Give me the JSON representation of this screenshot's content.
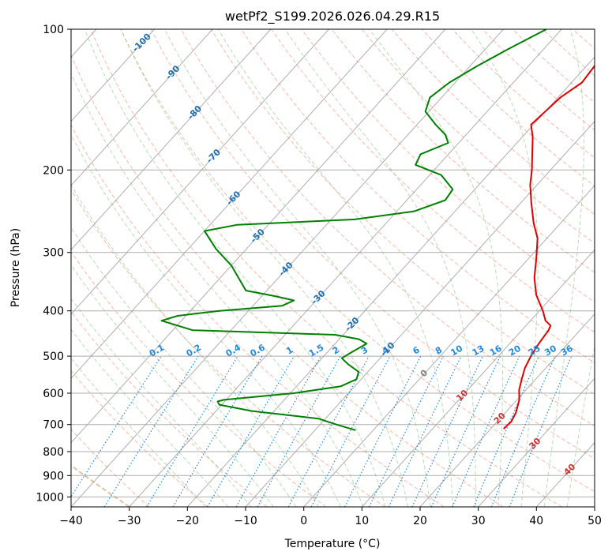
{
  "chart_data": {
    "type": "line",
    "diagram": "skew-T log-P",
    "title": "wetPf2_S199.2026.026.04.29.R15",
    "xlabel": "Temperature (°C)",
    "ylabel": "Pressure (hPa)",
    "xlim": [
      -40,
      50
    ],
    "ylim": [
      1050,
      100
    ],
    "x_ticks": [
      -40,
      -30,
      -20,
      -10,
      0,
      10,
      20,
      30,
      40,
      50
    ],
    "x_tick_labels": [
      "−40",
      "−30",
      "−20",
      "−10",
      "0",
      "10",
      "20",
      "30",
      "40",
      "50"
    ],
    "y_ticks": [
      1000,
      900,
      800,
      700,
      600,
      500,
      400,
      300,
      200,
      100
    ],
    "y_tick_labels": [
      "1000",
      "900",
      "800",
      "700",
      "600",
      "500",
      "400",
      "300",
      "200",
      "100"
    ],
    "grid": true,
    "colors": {
      "temperature": "#e00000",
      "dewpoint": "#008000",
      "dry_adiabat": "#f08060",
      "moist_adiabat": "#80c080",
      "mixing_ratio": "#2288dd",
      "isotherm": "#9a9a9a",
      "isotherm_label_neg": "#1f6fb0",
      "isotherm_label_pos": "#d03030",
      "isotherm_label_zero": "#808080",
      "freezing_adiabat": "#d4b48c"
    },
    "series": [
      {
        "name": "Temperature",
        "points": [
          {
            "p": 715,
            "t": 22.2
          },
          {
            "p": 690,
            "t": 22.4
          },
          {
            "p": 660,
            "t": 21.8
          },
          {
            "p": 620,
            "t": 20.4
          },
          {
            "p": 590,
            "t": 18.8
          },
          {
            "p": 560,
            "t": 17.6
          },
          {
            "p": 530,
            "t": 16.4
          },
          {
            "p": 500,
            "t": 15.6
          },
          {
            "p": 470,
            "t": 15.0
          },
          {
            "p": 440,
            "t": 14.6
          },
          {
            "p": 430,
            "t": 14.2
          },
          {
            "p": 420,
            "t": 12.6
          },
          {
            "p": 400,
            "t": 10.6
          },
          {
            "p": 370,
            "t": 7.0
          },
          {
            "p": 340,
            "t": 4.0
          },
          {
            "p": 310,
            "t": 1.4
          },
          {
            "p": 280,
            "t": -1.6
          },
          {
            "p": 260,
            "t": -4.6
          },
          {
            "p": 235,
            "t": -8.2
          },
          {
            "p": 215,
            "t": -11.2
          },
          {
            "p": 200,
            "t": -13.2
          },
          {
            "p": 185,
            "t": -15.6
          },
          {
            "p": 170,
            "t": -18.2
          },
          {
            "p": 160,
            "t": -20.4
          },
          {
            "p": 150,
            "t": -20.0
          },
          {
            "p": 140,
            "t": -19.6
          },
          {
            "p": 130,
            "t": -18.2
          },
          {
            "p": 120,
            "t": -18.6
          },
          {
            "p": 110,
            "t": -19.4
          },
          {
            "p": 100,
            "t": -21.4
          }
        ]
      },
      {
        "name": "Dewpoint",
        "points": [
          {
            "p": 720,
            "t": -3.0
          },
          {
            "p": 700,
            "t": -7.2
          },
          {
            "p": 680,
            "t": -11.2
          },
          {
            "p": 670,
            "t": -16.2
          },
          {
            "p": 655,
            "t": -23.8
          },
          {
            "p": 635,
            "t": -30.4
          },
          {
            "p": 625,
            "t": -31.2
          },
          {
            "p": 620,
            "t": -30.4
          },
          {
            "p": 600,
            "t": -19.4
          },
          {
            "p": 580,
            "t": -12.4
          },
          {
            "p": 560,
            "t": -10.8
          },
          {
            "p": 540,
            "t": -11.6
          },
          {
            "p": 520,
            "t": -14.6
          },
          {
            "p": 505,
            "t": -16.6
          },
          {
            "p": 490,
            "t": -15.8
          },
          {
            "p": 470,
            "t": -14.6
          },
          {
            "p": 460,
            "t": -16.6
          },
          {
            "p": 450,
            "t": -21.4
          },
          {
            "p": 440,
            "t": -46.6
          },
          {
            "p": 420,
            "t": -53.4
          },
          {
            "p": 410,
            "t": -51.4
          },
          {
            "p": 400,
            "t": -45.0
          },
          {
            "p": 390,
            "t": -35.0
          },
          {
            "p": 380,
            "t": -33.8
          },
          {
            "p": 372,
            "t": -37.8
          },
          {
            "p": 362,
            "t": -43.6
          },
          {
            "p": 320,
            "t": -50.0
          },
          {
            "p": 295,
            "t": -55.2
          },
          {
            "p": 270,
            "t": -60.0
          },
          {
            "p": 262,
            "t": -55.4
          },
          {
            "p": 255,
            "t": -36.0
          },
          {
            "p": 245,
            "t": -27.0
          },
          {
            "p": 232,
            "t": -23.4
          },
          {
            "p": 220,
            "t": -23.8
          },
          {
            "p": 205,
            "t": -28.0
          },
          {
            "p": 195,
            "t": -34.0
          },
          {
            "p": 185,
            "t": -34.8
          },
          {
            "p": 175,
            "t": -31.8
          },
          {
            "p": 168,
            "t": -33.6
          },
          {
            "p": 160,
            "t": -36.8
          },
          {
            "p": 150,
            "t": -40.6
          },
          {
            "p": 140,
            "t": -42.0
          },
          {
            "p": 130,
            "t": -41.0
          },
          {
            "p": 120,
            "t": -38.8
          },
          {
            "p": 110,
            "t": -36.0
          },
          {
            "p": 100,
            "t": -32.6
          }
        ]
      }
    ],
    "isotherm_labels": [
      {
        "t": -100,
        "text": "-100"
      },
      {
        "t": -90,
        "text": "-90"
      },
      {
        "t": -80,
        "text": "-80"
      },
      {
        "t": -70,
        "text": "-70"
      },
      {
        "t": -60,
        "text": "-60"
      },
      {
        "t": -50,
        "text": "-50"
      },
      {
        "t": -40,
        "text": "-40"
      },
      {
        "t": -30,
        "text": "-30"
      },
      {
        "t": -20,
        "text": "-20"
      },
      {
        "t": -10,
        "text": "-10"
      },
      {
        "t": 0,
        "text": "0"
      },
      {
        "t": 10,
        "text": "10"
      },
      {
        "t": 20,
        "text": "20"
      },
      {
        "t": 30,
        "text": "30"
      },
      {
        "t": 40,
        "text": "40"
      }
    ],
    "mixing_ratio_labels": [
      "0.1",
      "0.2",
      "0.4",
      "0.6",
      "1",
      "1.5",
      "2",
      "3",
      "4",
      "6",
      "8",
      "10",
      "13",
      "16",
      "20",
      "25",
      "30",
      "36"
    ]
  }
}
